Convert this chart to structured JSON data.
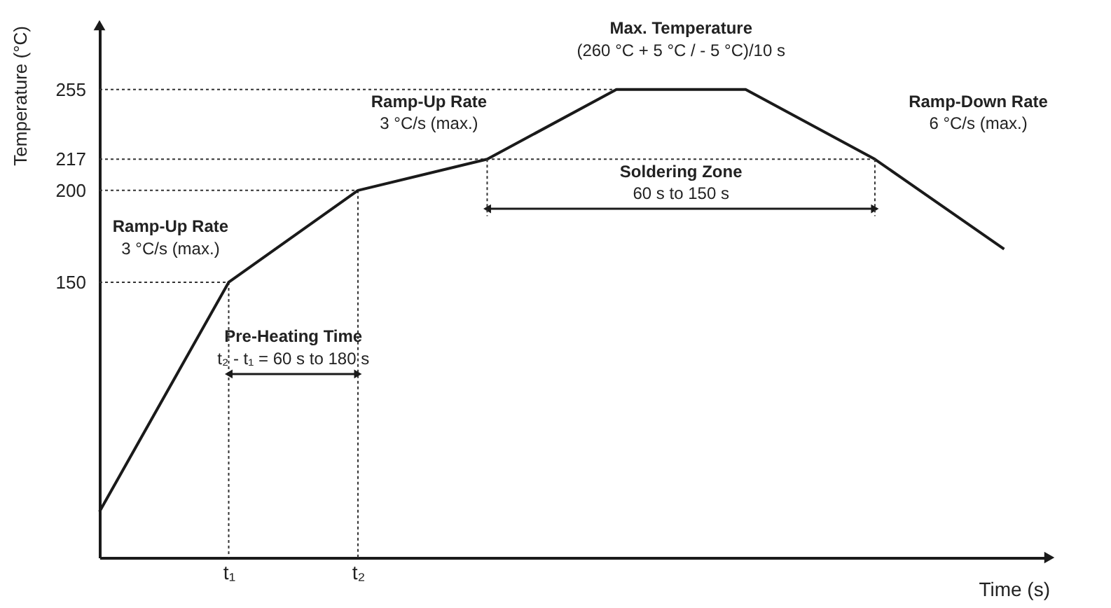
{
  "chart_data": {
    "type": "line",
    "xlabel": "Time (s)",
    "ylabel": "Temperature (°C)",
    "categories": [
      null,
      "t₁",
      "t₂",
      null,
      null,
      null,
      null,
      null
    ],
    "series": [
      {
        "color": "#1a1a1a",
        "values": [
          25,
          150,
          200,
          217,
          255,
          255,
          217,
          168
        ]
      }
    ],
    "ylim": [
      0,
      290
    ],
    "yticks": [
      150,
      200,
      217,
      255
    ],
    "marker": "none",
    "line_style": "solid",
    "ref_lines": [
      {
        "axis": "y",
        "value": 255,
        "line_style": "dotted"
      },
      {
        "axis": "y",
        "value": 217,
        "line_style": "dotted"
      },
      {
        "axis": "y",
        "value": 200,
        "line_style": "dotted"
      },
      {
        "axis": "y",
        "value": 150,
        "line_style": "dotted"
      },
      {
        "axis": "x",
        "value": "t₁",
        "line_style": "dotted"
      },
      {
        "axis": "x",
        "value": "t₂",
        "line_style": "dotted"
      }
    ],
    "annotations": [
      "Ramp-Up Rate",
      "3 °C/s (max.)",
      "Pre-Heating Time",
      "t₂ - t₁ = 60 s to 180 s",
      "Max. Temperature",
      "(260 °C + 5 °C / - 5 °C)/10 s",
      "Ramp-Up Rate",
      "3 °C/s (max.)",
      "Ramp-Down Rate",
      "6 °C/s (max.)",
      "Soldering Zone",
      "60 s to 150 s"
    ]
  }
}
